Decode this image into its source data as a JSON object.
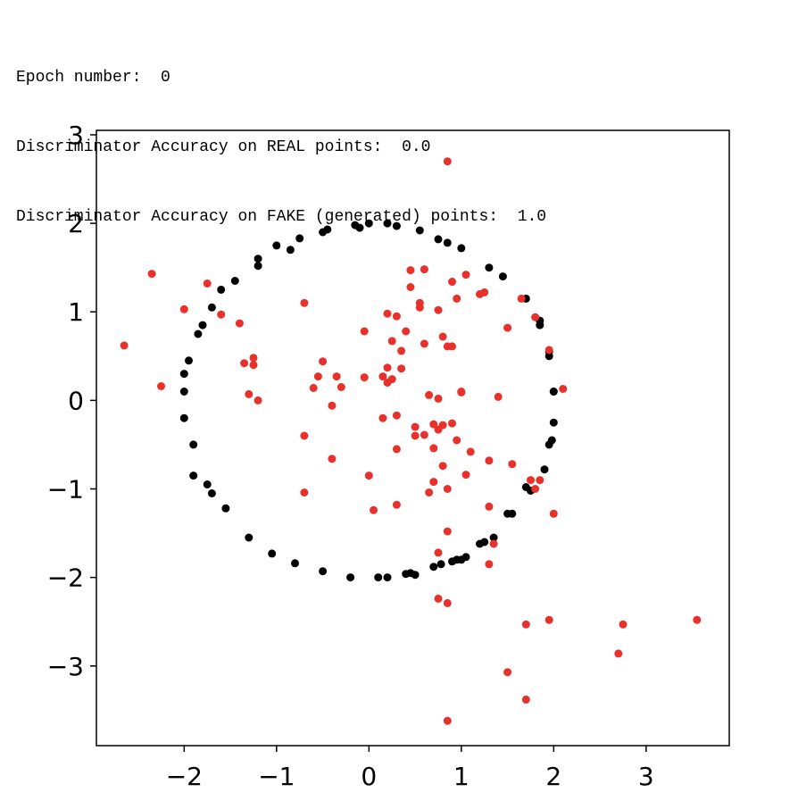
{
  "console": {
    "epoch_label": "Epoch number:",
    "epoch_value": "0",
    "real_label": "Discriminator Accuracy on REAL points:",
    "real_value": "0.0",
    "fake_label": "Discriminator Accuracy on FAKE (generated) points:",
    "fake_value": "1.0"
  },
  "chart_data": {
    "type": "scatter",
    "title": "",
    "xlabel": "",
    "ylabel": "",
    "xlim": [
      -2.95,
      3.9
    ],
    "ylim": [
      -3.9,
      3.05
    ],
    "xticks": [
      -2,
      -1,
      0,
      1,
      2,
      3
    ],
    "yticks": [
      -3,
      -2,
      -1,
      0,
      1,
      2,
      3
    ],
    "xtick_labels": [
      "−2",
      "−1",
      "0",
      "1",
      "2",
      "3"
    ],
    "ytick_labels": [
      "−3",
      "−2",
      "−1",
      "0",
      "1",
      "2",
      "3"
    ],
    "grid": false,
    "series": [
      {
        "color": "#000000",
        "x": [
          0.2,
          0.3,
          0.55,
          0.75,
          0.85,
          1.0,
          1.3,
          1.45,
          1.7,
          1.85,
          1.95,
          2.0,
          2.0,
          1.95,
          1.9,
          1.7,
          1.5,
          1.25,
          1.0,
          0.7,
          0.45,
          0.1,
          -0.2,
          -0.5,
          -0.8,
          -1.05,
          -1.3,
          -1.55,
          -1.75,
          -1.9,
          -2.0,
          -2.0,
          -1.95,
          -1.8,
          -1.7,
          -1.45,
          -1.2,
          -1.0,
          -0.75,
          -0.45,
          -0.15,
          -0.1,
          -0.5,
          -0.85,
          -1.2,
          -1.6,
          -1.85,
          -2.0,
          -1.9,
          -1.7,
          0.0,
          0.2,
          0.4,
          0.5,
          0.78,
          0.9,
          0.95,
          1.05,
          1.2,
          1.35,
          1.55,
          1.75,
          1.85,
          1.95,
          2.0,
          1.98
        ],
        "y": [
          2.0,
          1.97,
          1.92,
          1.82,
          1.78,
          1.72,
          1.5,
          1.4,
          1.15,
          0.9,
          0.55,
          0.1,
          -0.25,
          -0.5,
          -0.78,
          -0.98,
          -1.28,
          -1.6,
          -1.8,
          -1.88,
          -1.95,
          -2.0,
          -2.0,
          -1.93,
          -1.84,
          -1.73,
          -1.55,
          -1.22,
          -0.95,
          -0.5,
          -0.2,
          0.1,
          0.45,
          0.85,
          1.05,
          1.35,
          1.6,
          1.75,
          1.83,
          1.93,
          1.98,
          1.95,
          1.9,
          1.7,
          1.52,
          1.25,
          0.75,
          0.3,
          -0.85,
          -1.05,
          2.0,
          -2.0,
          -1.96,
          -1.97,
          -1.85,
          -1.82,
          -1.8,
          -1.77,
          -1.62,
          -1.55,
          -1.28,
          -1.02,
          0.85,
          0.5,
          0.1,
          -0.45
        ]
      },
      {
        "color": "#e8312b",
        "x": [
          0.85,
          -2.65,
          -2.35,
          -2.25,
          -1.75,
          -2.0,
          -1.6,
          -1.4,
          -1.35,
          -1.3,
          -1.25,
          -1.25,
          -1.2,
          -0.7,
          -0.7,
          -0.7,
          -0.6,
          -0.55,
          -0.5,
          -0.4,
          -0.35,
          -0.3,
          -0.4,
          -0.05,
          -0.05,
          0.0,
          0.05,
          0.15,
          0.2,
          0.2,
          0.25,
          0.3,
          0.3,
          0.35,
          0.4,
          0.45,
          0.45,
          0.5,
          0.5,
          0.55,
          0.6,
          0.6,
          0.65,
          0.65,
          0.7,
          0.7,
          0.75,
          0.75,
          0.8,
          0.8,
          0.8,
          0.85,
          0.85,
          0.9,
          0.9,
          0.95,
          1.0,
          1.05,
          1.05,
          1.1,
          1.2,
          1.25,
          1.3,
          1.3,
          1.4,
          1.5,
          1.55,
          1.65,
          1.75,
          1.8,
          1.8,
          1.85,
          1.95,
          2.0,
          2.1,
          0.75,
          0.75,
          0.85,
          0.85,
          1.3,
          1.35,
          1.7,
          1.95,
          1.5,
          1.7,
          2.7,
          2.75,
          3.55,
          0.85,
          0.25,
          0.3,
          0.3,
          0.55,
          0.2,
          0.35,
          0.15,
          0.6,
          0.75,
          0.95,
          1.0,
          0.7,
          0.9
        ],
        "y": [
          2.7,
          0.62,
          1.43,
          0.16,
          1.32,
          1.03,
          0.97,
          0.87,
          0.42,
          0.07,
          0.48,
          0.4,
          0.0,
          1.1,
          -0.4,
          -1.04,
          0.14,
          0.27,
          0.44,
          -0.66,
          0.27,
          0.15,
          -0.06,
          0.78,
          0.26,
          -0.85,
          -1.24,
          -0.2,
          0.2,
          0.37,
          0.67,
          -0.55,
          -1.18,
          0.56,
          0.78,
          1.28,
          1.47,
          -0.3,
          -0.4,
          1.1,
          1.48,
          -0.39,
          0.06,
          -1.04,
          -0.27,
          -0.92,
          -0.33,
          0.02,
          0.72,
          -0.74,
          -0.28,
          0.61,
          -1.48,
          -0.26,
          1.34,
          -0.45,
          0.1,
          1.42,
          -0.84,
          -0.58,
          1.2,
          1.22,
          -0.68,
          -1.2,
          0.04,
          0.82,
          -0.72,
          1.15,
          -0.9,
          0.94,
          -1.0,
          -0.9,
          0.57,
          -1.28,
          0.13,
          -1.72,
          -2.24,
          -1.0,
          -2.29,
          -1.85,
          -1.62,
          -2.53,
          -2.48,
          -3.07,
          -3.38,
          -2.86,
          -2.53,
          -2.48,
          -3.62,
          0.24,
          0.95,
          -0.17,
          1.05,
          0.98,
          0.36,
          0.27,
          0.64,
          1.02,
          1.15,
          0.09,
          -0.54,
          0.61
        ]
      }
    ]
  }
}
